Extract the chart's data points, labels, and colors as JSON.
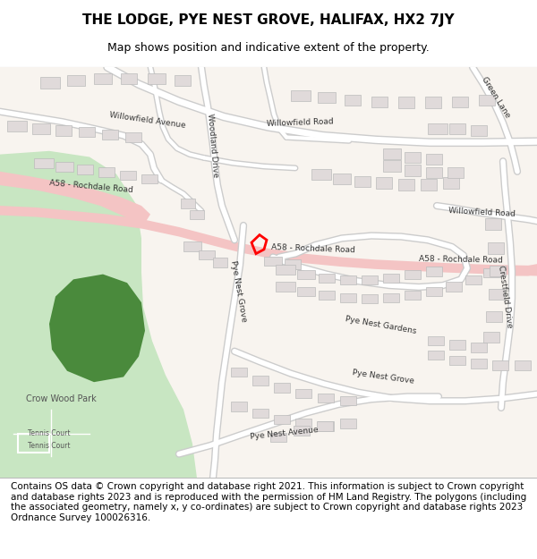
{
  "title": "THE LODGE, PYE NEST GROVE, HALIFAX, HX2 7JY",
  "subtitle": "Map shows position and indicative extent of the property.",
  "footer": "Contains OS data © Crown copyright and database right 2021. This information is subject to Crown copyright and database rights 2023 and is reproduced with the permission of HM Land Registry. The polygons (including the associated geometry, namely x, y co-ordinates) are subject to Crown copyright and database rights 2023 Ordnance Survey 100026316.",
  "map_bg": "#f8f4ef",
  "road_color_major": "#f4c4c4",
  "road_color_minor": "#ffffff",
  "road_outline": "#cccccc",
  "building_facecolor": "#e0dada",
  "building_edgecolor": "#bbbbbb",
  "park_color_light": "#c8e6c2",
  "park_color_dark": "#4a8a3c",
  "highlight_color": "#ff0000",
  "title_fontsize": 11,
  "subtitle_fontsize": 9,
  "footer_fontsize": 7.5,
  "label_fontsize": 6.5,
  "label_color": "#333333"
}
